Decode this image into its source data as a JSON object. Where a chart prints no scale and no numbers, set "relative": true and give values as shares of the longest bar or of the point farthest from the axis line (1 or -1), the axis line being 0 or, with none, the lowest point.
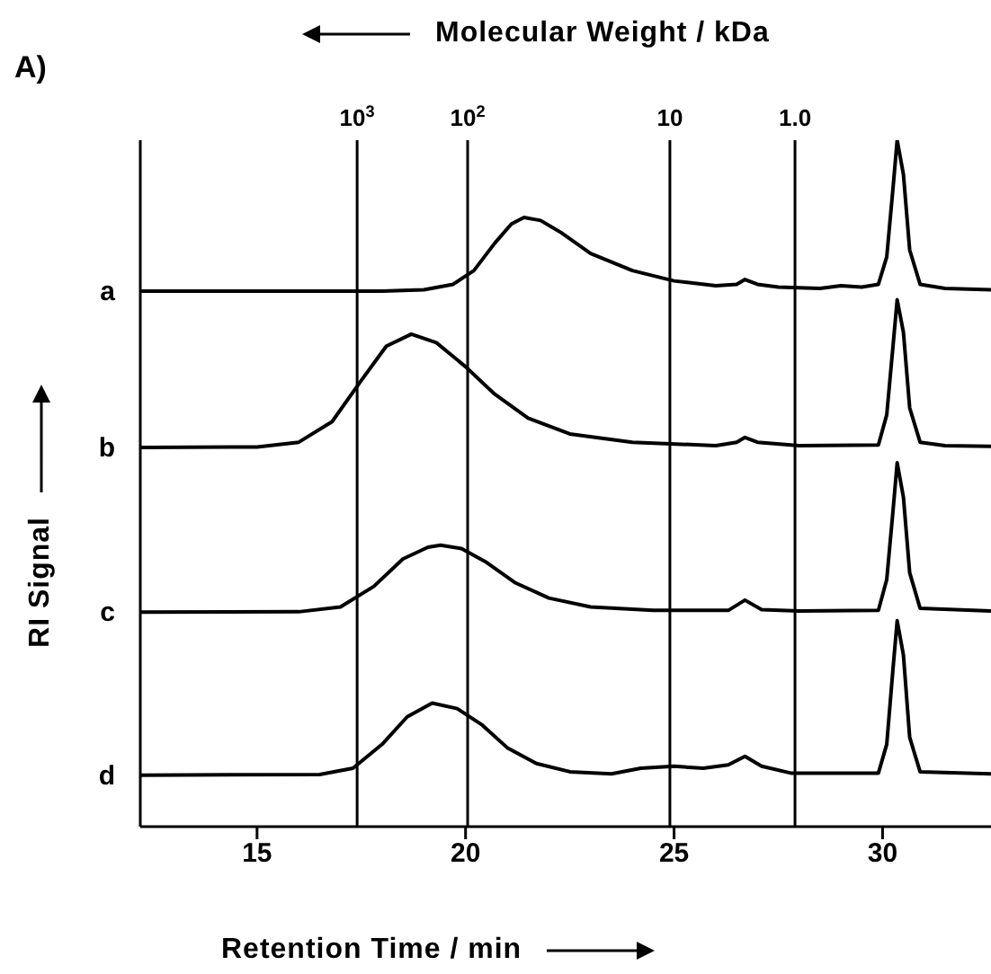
{
  "chart_data": {
    "type": "line",
    "relative": true,
    "xlabel": "Retention Time / min",
    "ylabel": "RI Signal",
    "annotations": [
      "A)",
      "Molecular Weight / kDa",
      "10$^{3}$",
      "10$^{2}$",
      "10",
      "1.0"
    ],
    "xlim": [
      12.2,
      32.6
    ],
    "xticks": [
      15,
      20,
      25,
      30
    ],
    "ref_lines": [
      {
        "axis": "x",
        "value": 17.4,
        "color": "#000000"
      },
      {
        "axis": "x",
        "value": 20.05,
        "color": "#000000"
      },
      {
        "axis": "x",
        "value": 24.9,
        "color": "#000000"
      },
      {
        "axis": "x",
        "value": 27.9,
        "color": "#000000"
      }
    ],
    "marker": "none",
    "line_style": "solid",
    "series": [
      {
        "name": "a",
        "color": "#000000",
        "x": [
          12.2,
          18,
          19,
          19.7,
          20.2,
          20.7,
          21.1,
          21.4,
          21.8,
          22.3,
          23,
          24,
          25,
          26,
          26.5,
          26.7,
          27,
          27.5,
          28.5,
          29,
          29.5,
          29.9,
          30.1,
          30.25,
          30.35,
          30.5,
          30.65,
          30.9,
          31.5,
          32.6
        ],
        "values": [
          0.78,
          0.78,
          0.782,
          0.79,
          0.81,
          0.85,
          0.878,
          0.8875,
          0.883,
          0.865,
          0.835,
          0.81,
          0.795,
          0.788,
          0.79,
          0.797,
          0.79,
          0.786,
          0.784,
          0.788,
          0.786,
          0.79,
          0.83,
          0.93,
          1.0,
          0.95,
          0.84,
          0.79,
          0.784,
          0.782
        ]
      },
      {
        "name": "b",
        "color": "#000000",
        "x": [
          12.2,
          15,
          16,
          16.8,
          17.5,
          18.1,
          18.7,
          19.3,
          20,
          20.7,
          21.5,
          22.5,
          24,
          26,
          26.5,
          26.7,
          27,
          28,
          29.9,
          30.1,
          30.25,
          30.35,
          30.5,
          30.65,
          30.9,
          31.5,
          32.6
        ],
        "values": [
          0.5525,
          0.553,
          0.56,
          0.59,
          0.65,
          0.7,
          0.7175,
          0.705,
          0.67,
          0.63,
          0.595,
          0.572,
          0.56,
          0.555,
          0.56,
          0.567,
          0.56,
          0.555,
          0.556,
          0.6,
          0.7,
          0.7675,
          0.72,
          0.61,
          0.56,
          0.555,
          0.554
        ]
      },
      {
        "name": "c",
        "color": "#000000",
        "x": [
          12.2,
          16,
          17,
          17.8,
          18.5,
          19.1,
          19.4,
          19.9,
          20.5,
          21.2,
          22,
          23,
          24.5,
          26.3,
          26.7,
          27.1,
          28,
          29.9,
          30.1,
          30.25,
          30.35,
          30.5,
          30.65,
          30.9,
          32.6
        ],
        "values": [
          0.3125,
          0.313,
          0.32,
          0.35,
          0.39,
          0.407,
          0.41,
          0.405,
          0.385,
          0.355,
          0.333,
          0.32,
          0.315,
          0.315,
          0.33,
          0.316,
          0.314,
          0.315,
          0.36,
          0.46,
          0.53,
          0.48,
          0.37,
          0.318,
          0.314
        ]
      },
      {
        "name": "d",
        "color": "#000000",
        "x": [
          12.2,
          16.5,
          17.3,
          18,
          18.6,
          19.2,
          19.8,
          20.4,
          21,
          21.7,
          22.5,
          23.5,
          24.2,
          25,
          25.7,
          26.3,
          26.7,
          27.1,
          27.8,
          29.9,
          30.1,
          30.25,
          30.35,
          30.5,
          30.65,
          30.9,
          32.6
        ],
        "values": [
          0.075,
          0.076,
          0.085,
          0.12,
          0.16,
          0.18,
          0.172,
          0.148,
          0.115,
          0.092,
          0.08,
          0.077,
          0.085,
          0.088,
          0.085,
          0.09,
          0.1025,
          0.088,
          0.078,
          0.078,
          0.12,
          0.23,
          0.3,
          0.25,
          0.13,
          0.08,
          0.077
        ]
      }
    ]
  }
}
